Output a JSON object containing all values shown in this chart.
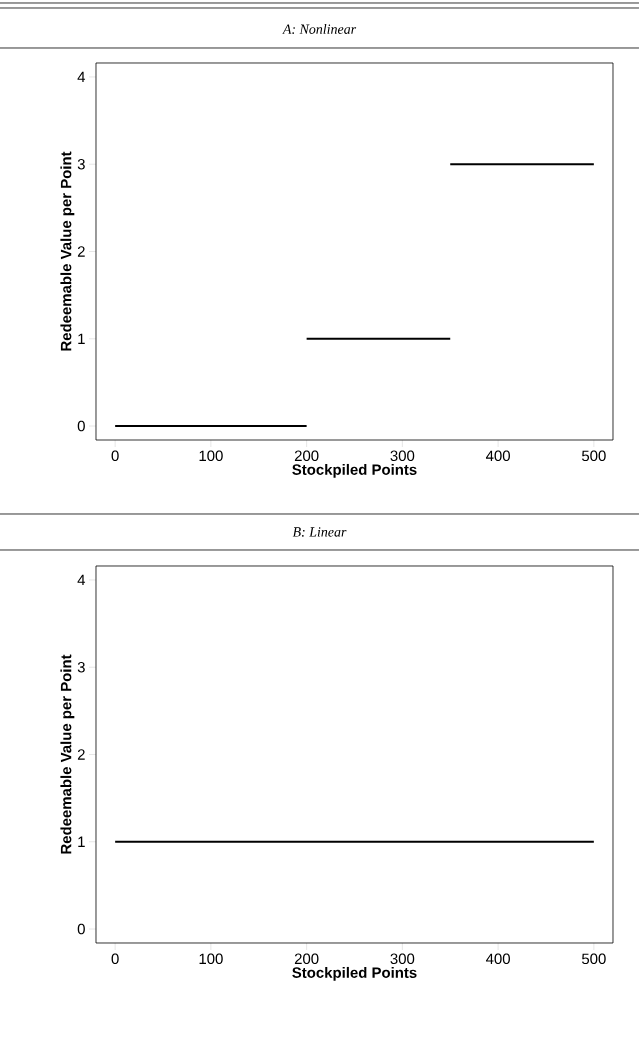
{
  "chart_data": [
    {
      "type": "line",
      "title": "A: Nonlinear",
      "xlabel": "Stockpiled Points",
      "ylabel": "Redeemable Value per Point",
      "series": [
        {
          "color": "#000000",
          "x": [
            0,
            200
          ],
          "values": [
            0,
            0
          ]
        },
        {
          "color": "#000000",
          "x": [
            200,
            350
          ],
          "values": [
            1,
            1
          ]
        },
        {
          "color": "#000000",
          "x": [
            350,
            500
          ],
          "values": [
            3,
            3
          ]
        }
      ],
      "xlim": [
        -20,
        520
      ],
      "ylim": [
        -0.16,
        4.16
      ],
      "xticks": [
        0,
        100,
        200,
        300,
        400,
        500
      ],
      "yticks": [
        0,
        1,
        2,
        3,
        4
      ]
    },
    {
      "type": "line",
      "title": "B: Linear",
      "xlabel": "Stockpiled Points",
      "ylabel": "Redeemable Value per Point",
      "series": [
        {
          "color": "#000000",
          "x": [
            0,
            500
          ],
          "values": [
            1,
            1
          ]
        }
      ],
      "xlim": [
        -20,
        520
      ],
      "ylim": [
        -0.16,
        4.16
      ],
      "xticks": [
        0,
        100,
        200,
        300,
        400,
        500
      ],
      "yticks": [
        0,
        1,
        2,
        3,
        4
      ]
    }
  ]
}
